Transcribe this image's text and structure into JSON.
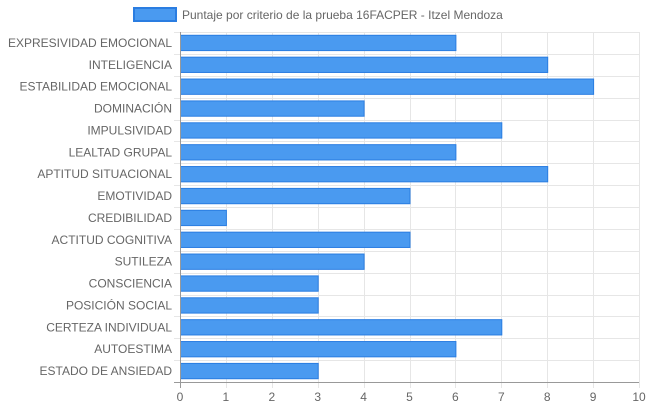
{
  "chart_data": {
    "type": "bar",
    "orientation": "horizontal",
    "categories": [
      "EXPRESIVIDAD EMOCIONAL",
      "INTELIGENCIA",
      "ESTABILIDAD EMOCIONAL",
      "DOMINACIÓN",
      "IMPULSIVIDAD",
      "LEALTAD GRUPAL",
      "APTITUD SITUACIONAL",
      "EMOTIVIDAD",
      "CREDIBILIDAD",
      "ACTITUD COGNITIVA",
      "SUTILEZA",
      "CONSCIENCIA",
      "POSICIÓN SOCIAL",
      "CERTEZA INDIVIDUAL",
      "AUTOESTIMA",
      "ESTADO DE ANSIEDAD"
    ],
    "series": [
      {
        "name": "Puntaje por criterio de la prueba 16FACPER - Itzel Mendoza",
        "values": [
          6,
          8,
          9,
          4,
          7,
          6,
          8,
          5,
          1,
          5,
          4,
          3,
          3,
          7,
          6,
          3
        ]
      }
    ],
    "xticks": [
      "0",
      "1",
      "2",
      "3",
      "4",
      "5",
      "6",
      "7",
      "8",
      "9",
      "10"
    ],
    "xlim": [
      0,
      10
    ],
    "grid": true,
    "legend_position": "top",
    "colors": {
      "bar_fill": "#4a9af0",
      "bar_border": "#2a7de1",
      "grid": "#e6e6e6",
      "axis": "#999999",
      "text": "#666666"
    }
  }
}
